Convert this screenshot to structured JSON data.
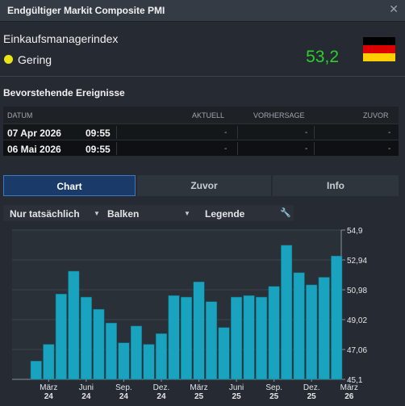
{
  "window": {
    "title": "Endgültiger Markit Composite PMI",
    "close_icon": "close-icon"
  },
  "indicator": {
    "name": "Einkaufsmanagerindex",
    "importance_label": "Gering",
    "importance_color": "#e8e419",
    "value": "53,2",
    "value_color": "#2bd02b",
    "country_flag": "germany-flag-icon"
  },
  "events": {
    "title": "Bevorstehende Ereignisse",
    "columns": [
      "DATUM",
      "AKTUELL",
      "VORHERSAGE",
      "ZUVOR"
    ],
    "rows": [
      {
        "date": "07 Apr 2026",
        "time": "09:55",
        "actual": "-",
        "forecast": "-",
        "previous": "-"
      },
      {
        "date": "06 Mai 2026",
        "time": "09:55",
        "actual": "-",
        "forecast": "-",
        "previous": "-"
      }
    ]
  },
  "tabs": [
    {
      "label": "Chart",
      "active": true
    },
    {
      "label": "Zuvor",
      "active": false
    },
    {
      "label": "Info",
      "active": false
    }
  ],
  "toolbar": {
    "filter": "Nur tatsächlich",
    "chart_type": "Balken",
    "legend": "Legende"
  },
  "chart_data": {
    "type": "bar",
    "title": "",
    "xlabel": "",
    "ylabel": "",
    "ylim": [
      45.1,
      54.9
    ],
    "y_ticks": [
      "54,9",
      "52,94",
      "50,98",
      "49,02",
      "47,06",
      "45,1"
    ],
    "x_tick_labels": [
      {
        "line1": "März",
        "line2": "24",
        "index": 1
      },
      {
        "line1": "Juni",
        "line2": "24",
        "index": 4
      },
      {
        "line1": "Sep.",
        "line2": "24",
        "index": 7
      },
      {
        "line1": "Dez.",
        "line2": "24",
        "index": 10
      },
      {
        "line1": "März",
        "line2": "25",
        "index": 13
      },
      {
        "line1": "Juni",
        "line2": "25",
        "index": 16
      },
      {
        "line1": "Sep.",
        "line2": "25",
        "index": 19
      },
      {
        "line1": "Dez.",
        "line2": "25",
        "index": 22
      },
      {
        "line1": "März",
        "line2": "26",
        "index": 25
      }
    ],
    "values": [
      46.3,
      47.4,
      50.7,
      52.2,
      50.5,
      49.7,
      48.8,
      47.5,
      48.6,
      47.4,
      48.1,
      50.6,
      50.5,
      51.5,
      50.2,
      48.5,
      50.5,
      50.6,
      50.5,
      51.2,
      53.9,
      52.1,
      51.3,
      51.8,
      53.2
    ],
    "colors": {
      "bar": "#1aa3bf",
      "bar_edge": "#0f6e82",
      "plot_bg": "#2a3038",
      "grid": "#3b4450"
    }
  }
}
